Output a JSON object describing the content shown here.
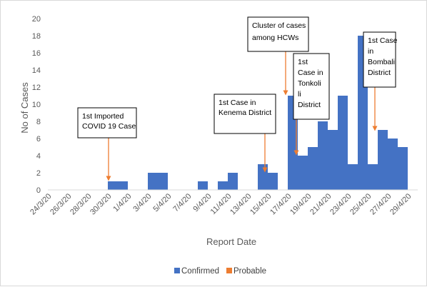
{
  "chart_data": {
    "type": "bar",
    "xlabel": "Report Date",
    "ylabel": "No of Cases",
    "ylim": [
      0,
      20
    ],
    "yticks": [
      0,
      2,
      4,
      6,
      8,
      10,
      12,
      14,
      16,
      18,
      20
    ],
    "grid": false,
    "legend_position": "bottom",
    "categories": [
      "24/3/20",
      "25/3/20",
      "26/3/20",
      "27/3/20",
      "28/3/20",
      "29/3/20",
      "30/3/20",
      "31/3/20",
      "1/4/20",
      "2/4/20",
      "3/4/20",
      "4/4/20",
      "5/4/20",
      "6/4/20",
      "7/4/20",
      "8/4/20",
      "9/4/20",
      "10/4/20",
      "11/4/20",
      "12/4/20",
      "13/4/20",
      "14/4/20",
      "15/4/20",
      "16/4/20",
      "17/4/20",
      "18/4/20",
      "19/4/20",
      "20/4/20",
      "21/4/20",
      "22/4/20",
      "23/4/20",
      "24/4/20",
      "25/4/20",
      "26/4/20",
      "27/4/20",
      "28/4/20",
      "29/4/20"
    ],
    "tick_labels": [
      "24/3/20",
      "26/3/20",
      "28/3/20",
      "30/3/20",
      "1/4/20",
      "3/4/20",
      "5/4/20",
      "7/4/20",
      "9/4/20",
      "11/4/20",
      "13/4/20",
      "15/4/20",
      "17/4/20",
      "19/4/20",
      "21/4/20",
      "23/4/20",
      "25/4/20",
      "27/4/20",
      "29/4/20"
    ],
    "series": [
      {
        "name": "Confirmed",
        "color": "#4472C4",
        "values": [
          0,
          0,
          0,
          0,
          0,
          0,
          1,
          1,
          0,
          0,
          2,
          2,
          0,
          0,
          0,
          1,
          0,
          1,
          2,
          0,
          0,
          3,
          2,
          0,
          11,
          4,
          5,
          8,
          7,
          11,
          3,
          18,
          3,
          7,
          6,
          5,
          0
        ]
      },
      {
        "name": "Probable",
        "color": "#ED7D31",
        "values": [
          0,
          0,
          0,
          0,
          0,
          0,
          0,
          0,
          0,
          0,
          0,
          0,
          0,
          0,
          0,
          0,
          0,
          0,
          0,
          0,
          0,
          0,
          0,
          0,
          0,
          0,
          0,
          0,
          0,
          0,
          0,
          0,
          0,
          0,
          0,
          0,
          0
        ]
      }
    ],
    "annotations": [
      {
        "lines": [
          "1st Imported",
          "COVID 19 Case"
        ],
        "arrow_to": "30/3/20"
      },
      {
        "lines": [
          "1st Case in",
          "Kenema District"
        ],
        "arrow_to": "15/4/20"
      },
      {
        "lines": [
          "Cluster of cases",
          "among HCWs"
        ],
        "arrow_to": "17/4/20"
      },
      {
        "lines": [
          "1st",
          "Case in",
          "Tonkoli",
          "li",
          "District"
        ],
        "arrow_to": "18/4/20"
      },
      {
        "lines": [
          "1st Case",
          "in",
          "Bombali",
          "District"
        ],
        "arrow_to": "26/4/20"
      }
    ]
  }
}
